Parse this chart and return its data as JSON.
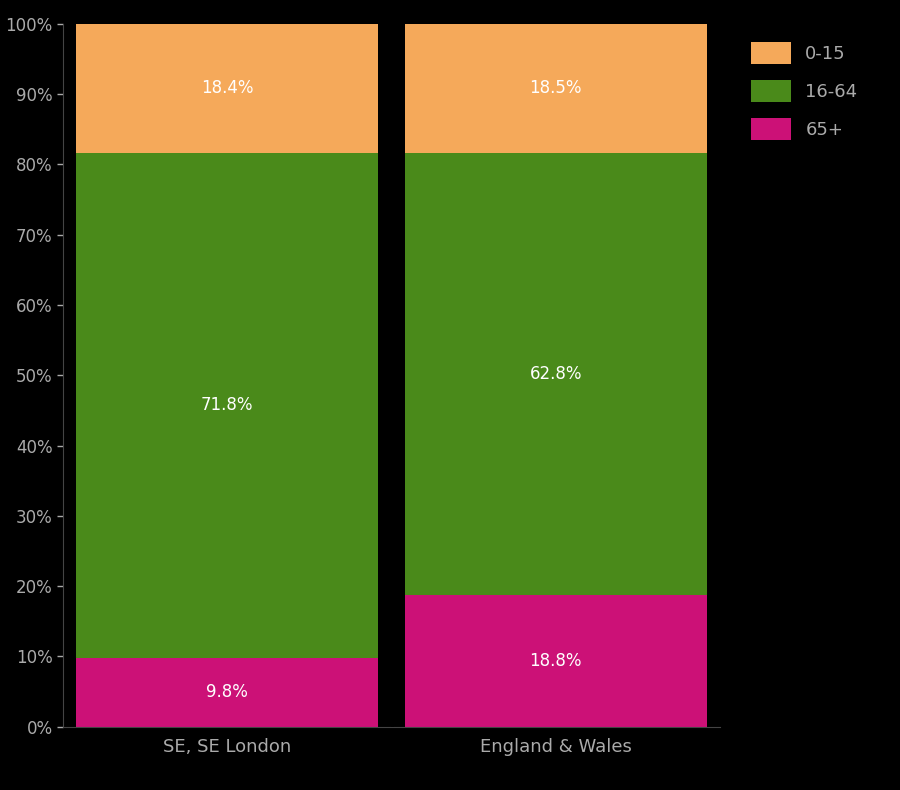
{
  "categories": [
    "SE, SE London",
    "England & Wales"
  ],
  "segments": {
    "65+": [
      9.8,
      18.8
    ],
    "16-64": [
      71.8,
      62.8
    ],
    "0-15": [
      18.4,
      18.5
    ]
  },
  "colors": {
    "65+": "#CC1177",
    "16-64": "#4A8A1A",
    "0-15": "#F5A95A"
  },
  "labels": {
    "SE, SE London": {
      "65+": "9.8%",
      "16-64": "71.8%",
      "0-15": "18.4%"
    },
    "England & Wales": {
      "65+": "18.8%",
      "16-64": "62.8%",
      "0-15": "18.5%"
    }
  },
  "background_color": "#000000",
  "text_color": "#aaaaaa",
  "yticks": [
    0,
    10,
    20,
    30,
    40,
    50,
    60,
    70,
    80,
    90,
    100
  ],
  "ytick_labels": [
    "0%",
    "10%",
    "20%",
    "30%",
    "40%",
    "50%",
    "60%",
    "70%",
    "80%",
    "90%",
    "100%"
  ],
  "legend_labels": [
    "0-15",
    "16-64",
    "65+"
  ],
  "bar_width": 0.92,
  "figsize": [
    9.0,
    7.9
  ],
  "dpi": 100
}
